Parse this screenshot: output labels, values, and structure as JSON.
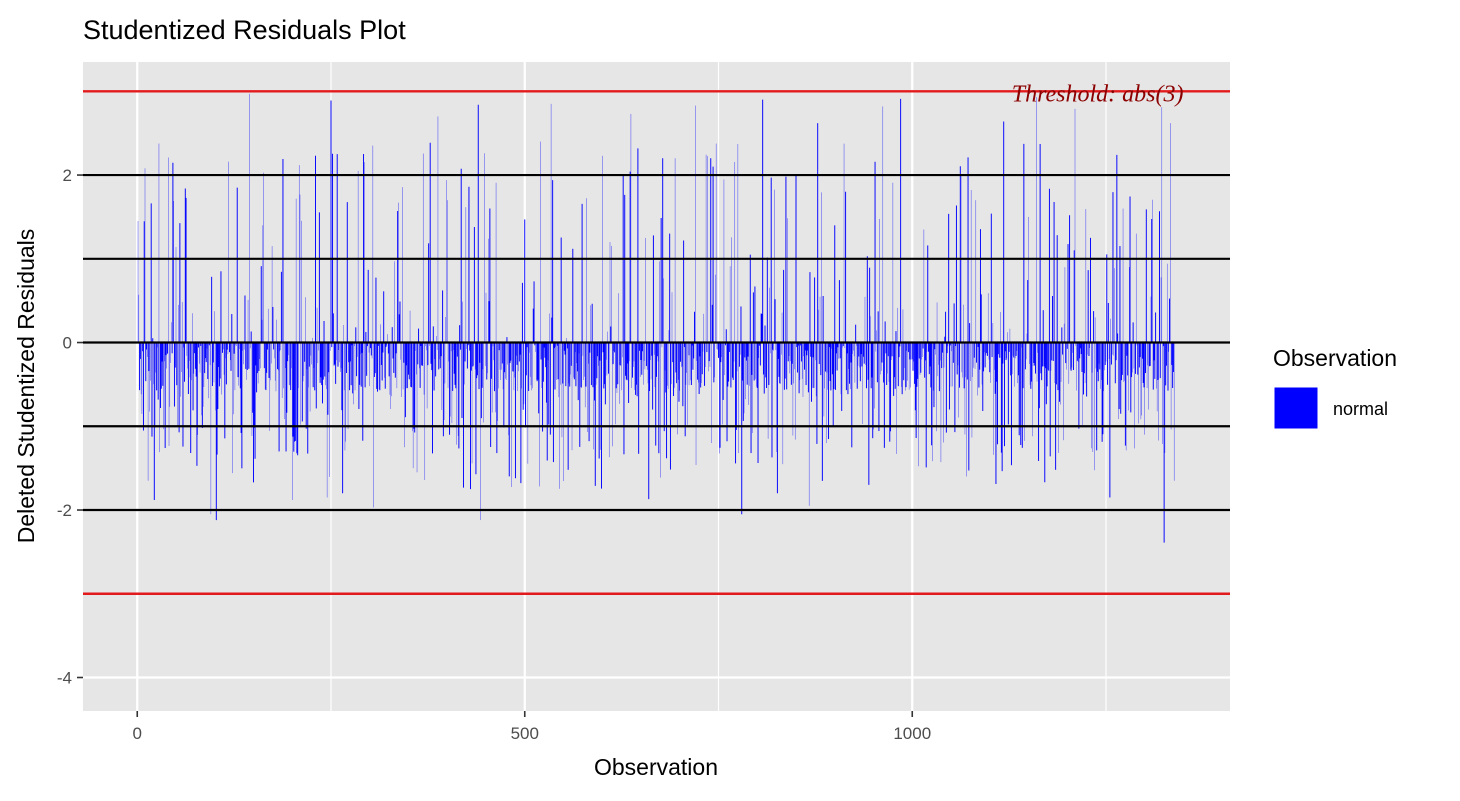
{
  "chart_data": {
    "type": "bar",
    "title": "Studentized Residuals Plot",
    "xlabel": "Observation",
    "ylabel": "Deleted Studentized Residuals",
    "xlim": [
      -70,
      1410
    ],
    "ylim": [
      -4.4,
      3.35
    ],
    "x_ticks": [
      0,
      500,
      1000
    ],
    "y_ticks": [
      -4,
      -2,
      0,
      2
    ],
    "x_tick_labels": [
      "0",
      "500",
      "1000"
    ],
    "y_tick_labels": [
      "-4",
      "-2",
      "0",
      "2"
    ],
    "grid": true,
    "reference_lines": [
      {
        "y": -2,
        "color": "#000000"
      },
      {
        "y": -1,
        "color": "#000000"
      },
      {
        "y": 0,
        "color": "#000000"
      },
      {
        "y": 1,
        "color": "#000000"
      },
      {
        "y": 2,
        "color": "#000000"
      }
    ],
    "threshold_lines": [
      {
        "y": 3,
        "color": "#e31a1c"
      },
      {
        "y": -3,
        "color": "#e31a1c"
      }
    ],
    "annotation": {
      "text": "Threshold: abs(3)",
      "x": 1350,
      "y": 3,
      "color": "#8b0000"
    },
    "legend": {
      "title": "Observation",
      "placement": "right",
      "entries": [
        {
          "label": "normal",
          "color": "#0000ff"
        }
      ]
    },
    "n_observations": 1338,
    "series": [
      {
        "name": "normal",
        "color": "#0000ff",
        "highlight_values": [
          {
            "x": 2,
            "y": 0.57
          },
          {
            "x": 10,
            "y": 2.08
          },
          {
            "x": 14,
            "y": -1.65
          },
          {
            "x": 22,
            "y": -1.88
          },
          {
            "x": 40,
            "y": 2.21
          },
          {
            "x": 47,
            "y": 1.69
          },
          {
            "x": 62,
            "y": 1.84
          },
          {
            "x": 95,
            "y": -2.05
          },
          {
            "x": 102,
            "y": -2.12
          },
          {
            "x": 118,
            "y": 2.16
          },
          {
            "x": 145,
            "y": 2.97
          },
          {
            "x": 162,
            "y": 1.4
          },
          {
            "x": 183,
            "y": -1.3
          },
          {
            "x": 200,
            "y": -1.88
          },
          {
            "x": 230,
            "y": 2.23
          },
          {
            "x": 245,
            "y": -1.85
          },
          {
            "x": 250,
            "y": 2.89
          },
          {
            "x": 265,
            "y": -1.8
          },
          {
            "x": 285,
            "y": 2.05
          },
          {
            "x": 305,
            "y": -1.97
          },
          {
            "x": 336,
            "y": 1.57
          },
          {
            "x": 356,
            "y": -1.5
          },
          {
            "x": 388,
            "y": 2.7
          },
          {
            "x": 400,
            "y": 1.7
          },
          {
            "x": 430,
            "y": -1.75
          },
          {
            "x": 440,
            "y": 2.84
          },
          {
            "x": 443,
            "y": -2.12
          },
          {
            "x": 455,
            "y": 1.6
          },
          {
            "x": 488,
            "y": -1.62
          },
          {
            "x": 500,
            "y": 1.47
          },
          {
            "x": 520,
            "y": 2.4
          },
          {
            "x": 534,
            "y": 2.85
          },
          {
            "x": 556,
            "y": -1.52
          },
          {
            "x": 600,
            "y": 2.23
          },
          {
            "x": 610,
            "y": 1.2
          },
          {
            "x": 637,
            "y": 2.73
          },
          {
            "x": 660,
            "y": -1.87
          },
          {
            "x": 678,
            "y": 2.2
          },
          {
            "x": 720,
            "y": 2.83
          },
          {
            "x": 780,
            "y": -2.05
          },
          {
            "x": 807,
            "y": 2.9
          },
          {
            "x": 826,
            "y": -1.8
          },
          {
            "x": 850,
            "y": 2.01
          },
          {
            "x": 867,
            "y": -1.95
          },
          {
            "x": 878,
            "y": 2.62
          },
          {
            "x": 900,
            "y": 1.4
          },
          {
            "x": 962,
            "y": 2.82
          },
          {
            "x": 985,
            "y": 2.91
          },
          {
            "x": 1015,
            "y": 1.35
          },
          {
            "x": 1063,
            "y": 2.0
          },
          {
            "x": 1082,
            "y": 1.7
          },
          {
            "x": 1102,
            "y": 1.54
          },
          {
            "x": 1118,
            "y": 2.64
          },
          {
            "x": 1150,
            "y": 1.5
          },
          {
            "x": 1160,
            "y": 2.93
          },
          {
            "x": 1185,
            "y": -1.52
          },
          {
            "x": 1210,
            "y": 2.79
          },
          {
            "x": 1230,
            "y": 1.25
          },
          {
            "x": 1255,
            "y": -1.85
          },
          {
            "x": 1272,
            "y": 1.6
          },
          {
            "x": 1300,
            "y": -1.1
          },
          {
            "x": 1322,
            "y": 2.81
          },
          {
            "x": 1325,
            "y": -2.39
          },
          {
            "x": 1333,
            "y": 2.62
          },
          {
            "x": 1338,
            "y": -1.65
          }
        ]
      }
    ]
  }
}
